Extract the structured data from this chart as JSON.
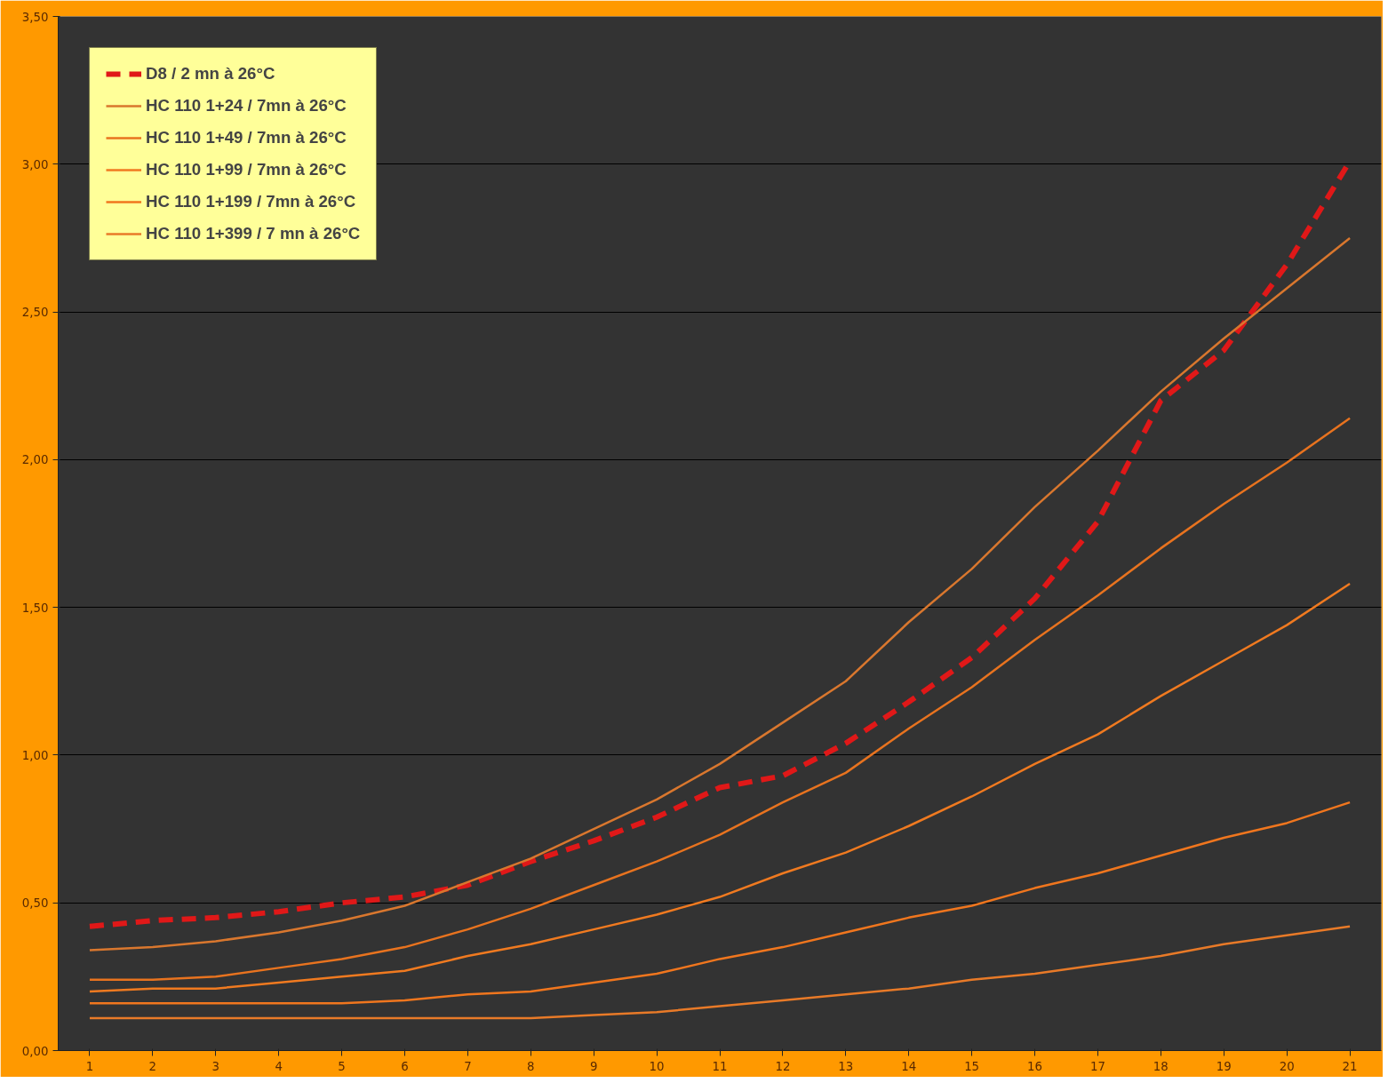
{
  "chart_data": {
    "type": "line",
    "x": [
      1,
      2,
      3,
      4,
      5,
      6,
      7,
      8,
      9,
      10,
      11,
      12,
      13,
      14,
      15,
      16,
      17,
      18,
      19,
      20,
      21
    ],
    "xlim": [
      0.5,
      21.5
    ],
    "xticks": [
      1,
      2,
      3,
      4,
      5,
      6,
      7,
      8,
      9,
      10,
      11,
      12,
      13,
      14,
      15,
      16,
      17,
      18,
      19,
      20,
      21
    ],
    "ylim": [
      0,
      3.5
    ],
    "yticks": [
      {
        "value": 0,
        "label": "0,00"
      },
      {
        "value": 0.5,
        "label": "0,50"
      },
      {
        "value": 1,
        "label": "1,00"
      },
      {
        "value": 1.5,
        "label": "1,50"
      },
      {
        "value": 2,
        "label": "2,00"
      },
      {
        "value": 2.5,
        "label": "2,50"
      },
      {
        "value": 3,
        "label": "3,00"
      },
      {
        "value": 3.5,
        "label": "3,50"
      }
    ],
    "grid": "y",
    "legend": "top left",
    "marker": "none",
    "series": [
      {
        "name": "D8 / 2 mn à 26°C",
        "color": "#e01818",
        "line_style": "dashed",
        "values": [
          0.42,
          0.44,
          0.45,
          0.47,
          0.5,
          0.52,
          0.56,
          0.64,
          0.71,
          0.79,
          0.89,
          0.93,
          1.04,
          1.18,
          1.33,
          1.53,
          1.79,
          2.2,
          2.37,
          2.66,
          3.01
        ]
      },
      {
        "name": "HC 110 1+24 / 7mn à 26°C",
        "color": "#d9772e",
        "line_style": "solid",
        "values": [
          0.34,
          0.35,
          0.37,
          0.4,
          0.44,
          0.49,
          0.57,
          0.65,
          0.75,
          0.85,
          0.97,
          1.11,
          1.25,
          1.45,
          1.63,
          1.84,
          2.03,
          2.23,
          2.41,
          2.58,
          2.75
        ]
      },
      {
        "name": "HC 110 1+49 / 7mn à 26°C",
        "color": "#e8731f",
        "line_style": "solid",
        "values": [
          0.24,
          0.24,
          0.25,
          0.28,
          0.31,
          0.35,
          0.41,
          0.48,
          0.56,
          0.64,
          0.73,
          0.84,
          0.94,
          1.09,
          1.23,
          1.39,
          1.54,
          1.7,
          1.85,
          1.99,
          2.14
        ]
      },
      {
        "name": "HC 110 1+99 / 7mn à 26°C",
        "color": "#f07a20",
        "line_style": "solid",
        "values": [
          0.2,
          0.21,
          0.21,
          0.23,
          0.25,
          0.27,
          0.32,
          0.36,
          0.41,
          0.46,
          0.52,
          0.6,
          0.67,
          0.76,
          0.86,
          0.97,
          1.07,
          1.2,
          1.32,
          1.44,
          1.58
        ]
      },
      {
        "name": "HC 110 1+199 / 7mn à 26°C",
        "color": "#f0761e",
        "line_style": "solid",
        "values": [
          0.16,
          0.16,
          0.16,
          0.16,
          0.16,
          0.17,
          0.19,
          0.2,
          0.23,
          0.26,
          0.31,
          0.35,
          0.4,
          0.45,
          0.49,
          0.55,
          0.6,
          0.66,
          0.72,
          0.77,
          0.84
        ]
      },
      {
        "name": "HC 110 1+399 / 7 mn à 26°C",
        "color": "#e87a28",
        "line_style": "solid",
        "values": [
          0.11,
          0.11,
          0.11,
          0.11,
          0.11,
          0.11,
          0.11,
          0.11,
          0.12,
          0.13,
          0.15,
          0.17,
          0.19,
          0.21,
          0.24,
          0.26,
          0.29,
          0.32,
          0.36,
          0.39,
          0.42
        ]
      }
    ]
  }
}
